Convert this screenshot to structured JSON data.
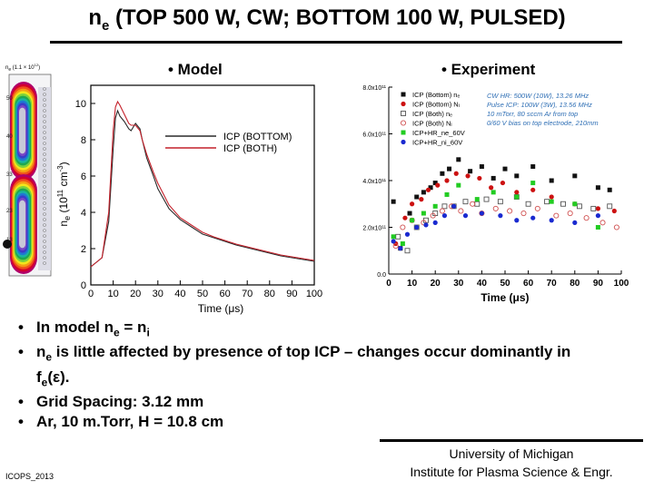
{
  "slide": {
    "title_pre": "n",
    "title_sub": "e",
    "title_post": " (TOP 500 W, CW;  BOTTOM 100 W, PULSED)",
    "model_label": "• Model",
    "experiment_label": "• Experiment",
    "bullets": [
      {
        "pre": "In model n",
        "sub1": "e",
        "mid": " = n",
        "sub2": "i",
        "post": ""
      },
      {
        "pre": "n",
        "sub1": "e",
        "mid": " is little affected by presence of top ICP – changes occur dominantly in f",
        "sub2": "e",
        "post": "(ε)."
      },
      {
        "pre": "Grid Spacing: 3.12 mm",
        "sub1": "",
        "mid": "",
        "sub2": "",
        "post": ""
      },
      {
        "pre": "Ar, 10 m.Torr, H = 10.8 cm",
        "sub1": "",
        "mid": "",
        "sub2": "",
        "post": ""
      }
    ],
    "footer_left": "ICOPS_2013",
    "footer_right_line1": "University of Michigan",
    "footer_right_line2": "Institute for Plasma Science & Engr."
  },
  "contour_plot": {
    "label": "n",
    "label_sub": "e",
    "label_rest": " (1.1 × 10",
    "label_sup": "12",
    "label_end": ")",
    "tick_labels": [
      "50",
      "40",
      "33",
      "23",
      "13"
    ],
    "colors": [
      "#b0006a",
      "#d4002c",
      "#f0501c",
      "#f59c14",
      "#f2e61c",
      "#7cd23c",
      "#1ea850",
      "#1ab4a0",
      "#1e78d2",
      "#3c3cc8",
      "#7a46c6",
      "#c8c8d8"
    ]
  },
  "chart_data": [
    {
      "type": "line",
      "title": "Model",
      "xlabel": "Time (μs)",
      "ylabel": "ne (10^11 cm^-3)",
      "xlim": [
        0,
        100
      ],
      "ylim": [
        0,
        11
      ],
      "xticks": [
        0,
        10,
        20,
        30,
        40,
        50,
        60,
        70,
        80,
        90,
        100
      ],
      "yticks": [
        0,
        2,
        4,
        6,
        8,
        10
      ],
      "legend": "top-right",
      "series": [
        {
          "name": "ICP (BOTTOM)",
          "color": "#2a2a2a",
          "x": [
            0,
            5,
            8,
            10,
            11,
            12,
            13,
            15,
            17,
            18,
            20,
            22,
            23,
            25,
            28,
            30,
            35,
            40,
            45,
            50,
            55,
            60,
            65,
            70,
            75,
            80,
            85,
            90,
            95,
            100
          ],
          "y": [
            1.0,
            1.5,
            3.5,
            7.5,
            9.2,
            9.6,
            9.3,
            9.0,
            8.6,
            8.5,
            8.9,
            8.6,
            8.0,
            7.0,
            6.0,
            5.3,
            4.2,
            3.6,
            3.2,
            2.8,
            2.6,
            2.4,
            2.2,
            2.05,
            1.9,
            1.75,
            1.6,
            1.5,
            1.4,
            1.3
          ]
        },
        {
          "name": "ICP (BOTH)",
          "color": "#c4202a",
          "x": [
            0,
            5,
            8,
            10,
            11,
            12,
            13,
            15,
            17,
            18,
            20,
            22,
            23,
            25,
            28,
            30,
            35,
            40,
            45,
            50,
            55,
            60,
            65,
            70,
            75,
            80,
            85,
            90,
            95,
            100
          ],
          "y": [
            1.0,
            1.5,
            4.0,
            8.5,
            9.8,
            10.1,
            9.9,
            9.4,
            8.9,
            8.8,
            8.8,
            8.5,
            8.0,
            7.2,
            6.2,
            5.6,
            4.4,
            3.7,
            3.3,
            2.9,
            2.65,
            2.45,
            2.25,
            2.1,
            1.95,
            1.8,
            1.65,
            1.55,
            1.45,
            1.35
          ]
        }
      ]
    },
    {
      "type": "scatter",
      "title": "Experiment",
      "xlabel": "Time (μs)",
      "xlim": [
        0,
        100
      ],
      "ylim": [
        0,
        8.0
      ],
      "xticks": [
        0,
        10,
        20,
        30,
        40,
        50,
        60,
        70,
        80,
        90,
        100
      ],
      "yticks": [
        0,
        2,
        4,
        6,
        8
      ],
      "ytick_labels": [
        "0.0",
        "2.0x10¹¹",
        "4.0x10¹¹",
        "6.0x10¹¹",
        "8.0x10¹¹"
      ],
      "legend": "top",
      "legend_entries": [
        "ICP (Bottom) nₑ",
        "ICP (Bottom) Nᵢ",
        "ICP (Both) nₑ",
        "ICP (Both) Nᵢ",
        "ICP+HR_ne_60V",
        "ICP+HR_ni_60V"
      ],
      "annotation_lines": [
        "CW HR: 500W (10W), 13.26 MHz",
        "Pulse ICP: 100W (3W), 13.56 MHz",
        "10 mTorr, 80 sccm Ar from top",
        "0/60 V bias on top electrode, 210mm"
      ],
      "series": [
        {
          "name": "ICP (Bottom) nₑ",
          "marker": "filled-square",
          "color": "#111111",
          "x": [
            2,
            5,
            9,
            12,
            15,
            18,
            20,
            23,
            26,
            30,
            35,
            40,
            45,
            50,
            55,
            62,
            70,
            80,
            90,
            95
          ],
          "y": [
            3.1,
            1.1,
            2.6,
            3.3,
            3.5,
            3.7,
            3.9,
            4.3,
            4.5,
            4.9,
            4.4,
            4.6,
            4.1,
            4.5,
            4.2,
            4.6,
            4.0,
            4.2,
            3.7,
            3.6
          ]
        },
        {
          "name": "ICP (Bottom) Nᵢ",
          "marker": "filled-circle",
          "color": "#cc1111",
          "x": [
            3,
            7,
            10,
            14,
            17,
            21,
            25,
            29,
            34,
            39,
            44,
            49,
            55,
            62,
            70,
            80,
            90,
            97
          ],
          "y": [
            1.3,
            2.4,
            3.0,
            3.2,
            3.6,
            3.8,
            4.0,
            4.3,
            4.2,
            4.1,
            3.7,
            3.9,
            3.5,
            3.6,
            3.3,
            3.0,
            2.8,
            2.7
          ]
        },
        {
          "name": "ICP (Both) nₑ",
          "marker": "open-square",
          "color": "#555555",
          "x": [
            4,
            8,
            12,
            16,
            20,
            24,
            28,
            33,
            38,
            42,
            48,
            55,
            60,
            68,
            75,
            82,
            88,
            95
          ],
          "y": [
            1.6,
            1.0,
            2.0,
            2.3,
            2.6,
            2.9,
            2.9,
            3.1,
            3.0,
            3.2,
            3.1,
            3.3,
            3.0,
            3.1,
            3.0,
            2.9,
            2.8,
            2.9
          ]
        },
        {
          "name": "ICP (Both) Nᵢ",
          "marker": "open-circle",
          "color": "#d05050",
          "x": [
            3,
            6,
            10,
            15,
            19,
            23,
            27,
            31,
            36,
            40,
            46,
            52,
            58,
            64,
            72,
            78,
            85,
            92,
            98
          ],
          "y": [
            1.2,
            2.0,
            2.3,
            2.2,
            2.5,
            2.7,
            2.9,
            2.7,
            3.0,
            2.6,
            2.8,
            2.7,
            2.6,
            2.8,
            2.5,
            2.6,
            2.4,
            2.2,
            2.0
          ]
        },
        {
          "name": "ICP+HR_ne_60V",
          "marker": "filled-square",
          "color": "#22cc22",
          "x": [
            2,
            6,
            10,
            15,
            20,
            25,
            30,
            38,
            45,
            55,
            62,
            70,
            80,
            90
          ],
          "y": [
            1.6,
            1.3,
            2.3,
            2.6,
            2.9,
            3.4,
            3.8,
            3.2,
            3.5,
            3.3,
            3.9,
            3.1,
            3.0,
            2.0
          ]
        },
        {
          "name": "ICP+HR_ni_60V",
          "marker": "filled-circle",
          "color": "#1a2ad0",
          "x": [
            2,
            5,
            8,
            12,
            16,
            20,
            24,
            28,
            33,
            40,
            48,
            55,
            62,
            70,
            80,
            90
          ],
          "y": [
            1.4,
            1.1,
            1.7,
            2.0,
            2.1,
            2.2,
            2.5,
            2.9,
            2.5,
            2.6,
            2.5,
            2.3,
            2.4,
            2.3,
            2.2,
            2.5
          ]
        }
      ]
    }
  ]
}
